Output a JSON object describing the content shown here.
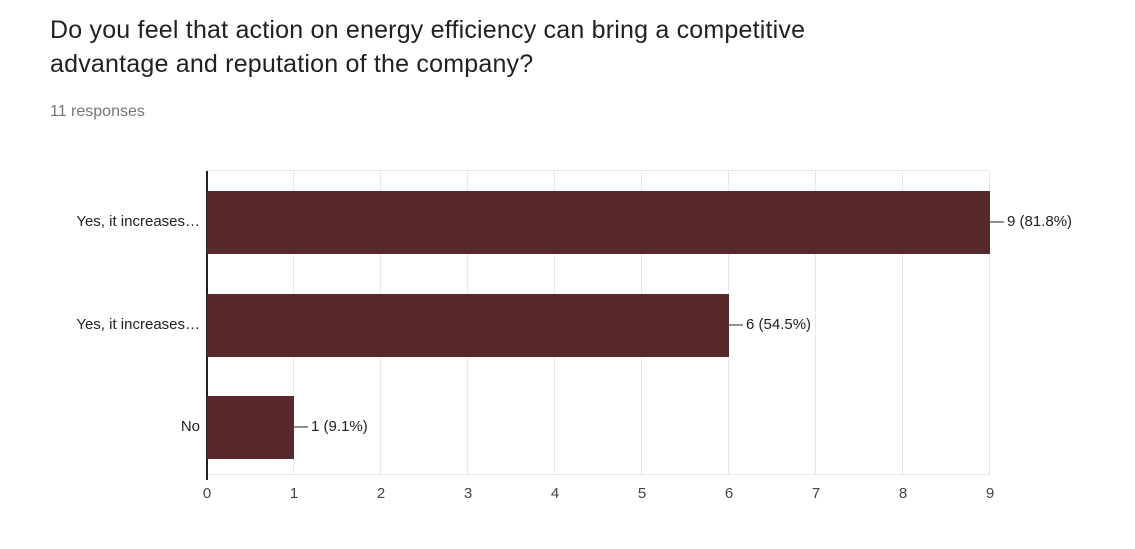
{
  "header": {
    "title": "Do you feel that action on energy efficiency can bring a competitive advantage and reputation of the company?",
    "title_lines": [
      "Do you feel that action on energy efficiency can bring a competitive",
      "advantage and reputation of the company?"
    ],
    "responses_label": "11 responses"
  },
  "chart_data": {
    "type": "bar",
    "orientation": "horizontal",
    "title": "",
    "categories": [
      "Yes, it increases…",
      "Yes, it increases…",
      "No"
    ],
    "values": [
      9,
      6,
      1
    ],
    "value_labels": [
      "9 (81.8%)",
      "6 (54.5%)",
      "1 (9.1%)"
    ],
    "percentages": [
      81.8,
      54.5,
      9.1
    ],
    "total_responses": 11,
    "x_ticks": [
      "0",
      "1",
      "2",
      "3",
      "4",
      "5",
      "6",
      "7",
      "8",
      "9"
    ],
    "xlim": [
      0,
      9
    ],
    "grid": true,
    "legend": "none",
    "colors": {
      "bar": "#58292b",
      "gridline": "#e8e8e8",
      "axis": "#212121",
      "category_text": "#212121",
      "value_text": "#212121",
      "tick_text": "#444444",
      "title_text": "#212121",
      "subtitle_text": "#757575"
    }
  }
}
